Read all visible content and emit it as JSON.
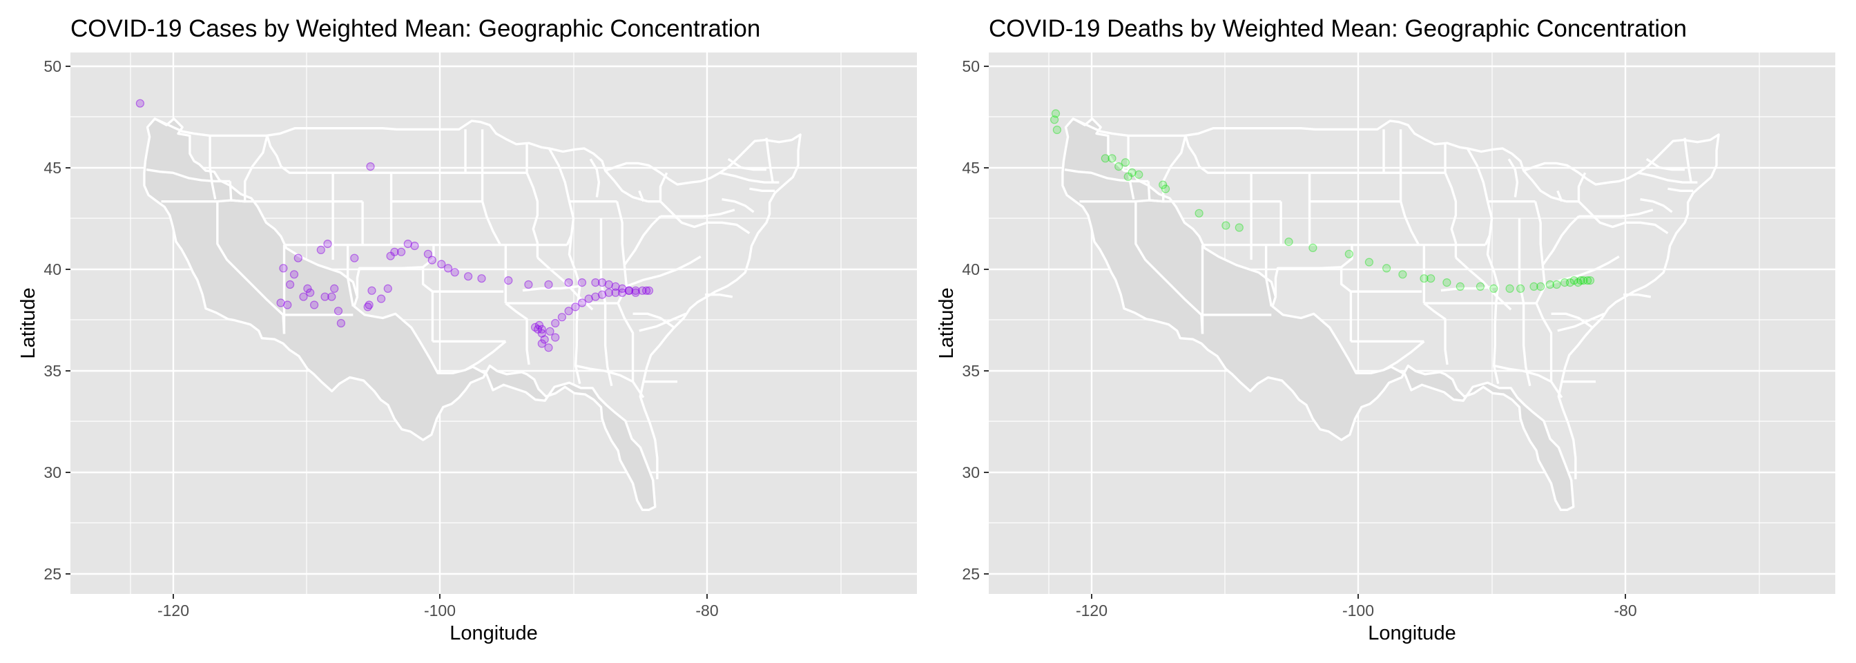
{
  "chart_data": [
    {
      "type": "scatter",
      "title": "COVID-19 Cases by Weighted Mean: Geographic Concentration",
      "xlabel": "Longitude",
      "ylabel": "Latitude",
      "xlim": [
        -127.2,
        -64.0
      ],
      "ylim": [
        24.0,
        50.6
      ],
      "x_ticks": [
        -120,
        -100,
        -80
      ],
      "y_ticks": [
        25,
        30,
        35,
        40,
        45,
        50
      ],
      "grid": true,
      "legend": "none",
      "point_color": "#8b00e8",
      "point_opacity": 0.25,
      "background": "basemap: contiguous US state boundaries",
      "series": [
        {
          "x": [
            -122.0,
            -104.8,
            -111.5,
            -111.3,
            -110.5,
            -110.2,
            -109.5,
            -109.3,
            -110.8,
            -111.0,
            -109.8,
            -109.0,
            -108.5,
            -108.0,
            -107.5,
            -107.7,
            -107.2,
            -108.2,
            -107.0,
            -106.0,
            -105.0,
            -104.9,
            -104.7,
            -104.0,
            -103.5,
            -103.3,
            -103.0,
            -102.5,
            -102.0,
            -101.5,
            -100.5,
            -100.2,
            -99.5,
            -99.0,
            -98.5,
            -97.5,
            -96.5,
            -94.5,
            -93.0,
            -91.5,
            -90.0,
            -89.0,
            -88.0,
            -87.5,
            -87.0,
            -86.5,
            -86.0,
            -85.5,
            -85.0,
            -84.5,
            -84.2,
            -84.0,
            -92.3,
            -92.0,
            -91.8,
            -91.4,
            -91.0,
            -90.5,
            -90.0,
            -89.5,
            -89.0,
            -88.5,
            -88.0,
            -87.5,
            -87.0,
            -86.5,
            -86.0,
            -85.5,
            -85.0,
            -92.5,
            -92.0,
            -91.5,
            -91.0,
            -92.2,
            -92.0
          ],
          "y": [
            48.1,
            45.0,
            38.3,
            40.0,
            39.7,
            40.5,
            39.0,
            38.8,
            39.2,
            38.2,
            38.6,
            38.2,
            40.9,
            41.2,
            39.0,
            38.6,
            37.9,
            38.6,
            37.3,
            40.5,
            38.1,
            38.2,
            38.9,
            38.5,
            39.0,
            40.6,
            40.8,
            40.8,
            41.2,
            41.1,
            40.7,
            40.4,
            40.2,
            40.0,
            39.8,
            39.6,
            39.5,
            39.4,
            39.2,
            39.2,
            39.3,
            39.3,
            39.3,
            39.3,
            39.2,
            39.1,
            39.0,
            38.9,
            38.8,
            38.9,
            38.9,
            38.9,
            37.0,
            36.8,
            36.5,
            36.9,
            37.3,
            37.6,
            37.9,
            38.1,
            38.3,
            38.5,
            38.6,
            38.7,
            38.8,
            38.8,
            38.8,
            38.9,
            38.9,
            37.1,
            36.3,
            36.1,
            36.6,
            37.2,
            37.0
          ]
        }
      ]
    },
    {
      "type": "scatter",
      "title": "COVID-19 Deaths by Weighted Mean: Geographic Concentration",
      "xlabel": "Longitude",
      "ylabel": "Latitude",
      "xlim": [
        -127.2,
        -64.0
      ],
      "ylim": [
        24.0,
        50.6
      ],
      "x_ticks": [
        -120,
        -100,
        -80
      ],
      "y_ticks": [
        25,
        30,
        35,
        40,
        45,
        50
      ],
      "grid": true,
      "legend": "none",
      "point_color": "#00e000",
      "point_opacity": 0.2,
      "background": "basemap: contiguous US state boundaries",
      "series": [
        {
          "x": [
            -122.2,
            -122.3,
            -122.1,
            -118.5,
            -118.0,
            -117.5,
            -117.0,
            -116.8,
            -116.5,
            -116.0,
            -114.2,
            -114.0,
            -111.5,
            -109.5,
            -108.5,
            -104.8,
            -103.0,
            -100.3,
            -98.8,
            -97.5,
            -96.3,
            -94.7,
            -94.2,
            -93.0,
            -92.0,
            -90.5,
            -89.5,
            -88.3,
            -87.5,
            -86.5,
            -86.0,
            -85.3,
            -84.8,
            -84.2,
            -83.8,
            -83.5,
            -83.2,
            -83.0,
            -82.8,
            -82.5,
            -82.3
          ],
          "y": [
            47.6,
            47.3,
            46.8,
            45.4,
            45.4,
            45.0,
            45.2,
            44.5,
            44.7,
            44.6,
            44.1,
            43.9,
            42.7,
            42.1,
            42.0,
            41.3,
            41.0,
            40.7,
            40.3,
            40.0,
            39.7,
            39.5,
            39.5,
            39.3,
            39.1,
            39.1,
            39.0,
            39.0,
            39.0,
            39.1,
            39.1,
            39.2,
            39.2,
            39.3,
            39.3,
            39.4,
            39.3,
            39.4,
            39.4,
            39.4,
            39.4
          ]
        }
      ]
    }
  ]
}
